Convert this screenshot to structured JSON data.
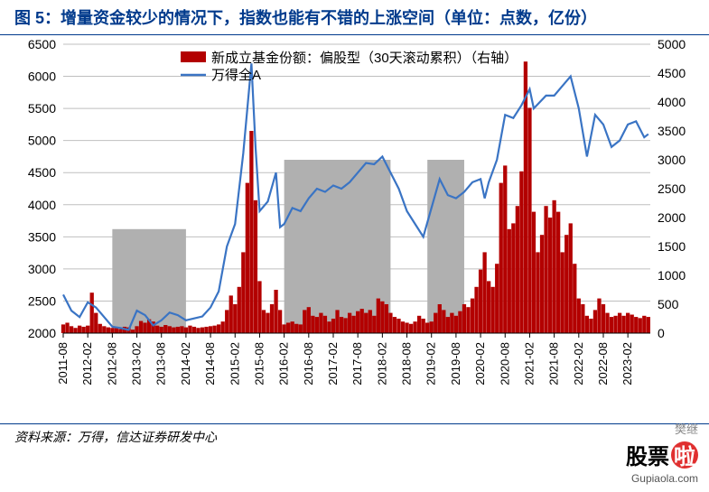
{
  "title": "图 5：增量资金较少的情况下，指数也能有不错的上涨空间（单位：点数，亿份）",
  "source": "资料来源：万得，信达证券研发中心",
  "watermark": {
    "top": "樊继",
    "cn": "股票",
    "la": "啦",
    "url": "Gupiaola.com"
  },
  "chart": {
    "type": "dual-axis bar+line",
    "background_color": "#ffffff",
    "grid_color": "#bfbfbf",
    "left_axis": {
      "min": 2000,
      "max": 6500,
      "step": 500
    },
    "right_axis": {
      "min": 0,
      "max": 5000,
      "step": 500
    },
    "x_labels": [
      "2011-08",
      "2012-02",
      "2012-08",
      "2013-02",
      "2013-08",
      "2014-02",
      "2014-08",
      "2015-02",
      "2015-08",
      "2016-02",
      "2016-08",
      "2017-02",
      "2017-08",
      "2018-02",
      "2018-08",
      "2019-02",
      "2019-08",
      "2020-02",
      "2020-08",
      "2021-02",
      "2021-08",
      "2022-02",
      "2022-08",
      "2023-02"
    ],
    "legend": {
      "bar": {
        "label": "新成立基金份额：偏股型（30天滚动累积）（右轴）",
        "color": "#b30000"
      },
      "line": {
        "label": "万得全A",
        "color": "#3a74c4"
      }
    },
    "shade_color": "#b0b0b0",
    "shade_periods": [
      {
        "start": "2012-08",
        "end": "2014-02",
        "height_right": 1800
      },
      {
        "start": "2016-02",
        "end": "2018-04",
        "height_right": 3000
      },
      {
        "start": "2019-01",
        "end": "2019-10",
        "height_right": 3000
      }
    ],
    "line_series": {
      "color": "#3a74c4",
      "width": 2.2,
      "data": [
        [
          "2011-08",
          2600
        ],
        [
          "2011-10",
          2350
        ],
        [
          "2011-12",
          2250
        ],
        [
          "2012-02",
          2480
        ],
        [
          "2012-04",
          2400
        ],
        [
          "2012-06",
          2250
        ],
        [
          "2012-08",
          2100
        ],
        [
          "2012-10",
          2080
        ],
        [
          "2012-12",
          2050
        ],
        [
          "2013-02",
          2350
        ],
        [
          "2013-04",
          2280
        ],
        [
          "2013-06",
          2120
        ],
        [
          "2013-08",
          2200
        ],
        [
          "2013-10",
          2320
        ],
        [
          "2013-12",
          2280
        ],
        [
          "2014-02",
          2200
        ],
        [
          "2014-04",
          2230
        ],
        [
          "2014-06",
          2260
        ],
        [
          "2014-08",
          2400
        ],
        [
          "2014-10",
          2650
        ],
        [
          "2014-12",
          3350
        ],
        [
          "2015-02",
          3700
        ],
        [
          "2015-04",
          4800
        ],
        [
          "2015-06",
          6200
        ],
        [
          "2015-07",
          4900
        ],
        [
          "2015-08",
          3900
        ],
        [
          "2015-10",
          4050
        ],
        [
          "2015-12",
          4500
        ],
        [
          "2016-01",
          3650
        ],
        [
          "2016-02",
          3700
        ],
        [
          "2016-04",
          3950
        ],
        [
          "2016-06",
          3900
        ],
        [
          "2016-08",
          4100
        ],
        [
          "2016-10",
          4250
        ],
        [
          "2016-12",
          4200
        ],
        [
          "2017-02",
          4300
        ],
        [
          "2017-04",
          4250
        ],
        [
          "2017-06",
          4350
        ],
        [
          "2017-08",
          4500
        ],
        [
          "2017-10",
          4650
        ],
        [
          "2017-12",
          4630
        ],
        [
          "2018-02",
          4750
        ],
        [
          "2018-04",
          4500
        ],
        [
          "2018-06",
          4250
        ],
        [
          "2018-08",
          3900
        ],
        [
          "2018-10",
          3700
        ],
        [
          "2018-12",
          3500
        ],
        [
          "2019-02",
          3950
        ],
        [
          "2019-04",
          4400
        ],
        [
          "2019-06",
          4150
        ],
        [
          "2019-08",
          4100
        ],
        [
          "2019-10",
          4200
        ],
        [
          "2019-12",
          4350
        ],
        [
          "2020-02",
          4400
        ],
        [
          "2020-03",
          4100
        ],
        [
          "2020-04",
          4350
        ],
        [
          "2020-06",
          4700
        ],
        [
          "2020-08",
          5400
        ],
        [
          "2020-10",
          5350
        ],
        [
          "2020-12",
          5550
        ],
        [
          "2021-02",
          5800
        ],
        [
          "2021-03",
          5500
        ],
        [
          "2021-06",
          5700
        ],
        [
          "2021-08",
          5700
        ],
        [
          "2021-10",
          5850
        ],
        [
          "2021-12",
          6000
        ],
        [
          "2022-02",
          5500
        ],
        [
          "2022-04",
          4750
        ],
        [
          "2022-06",
          5400
        ],
        [
          "2022-08",
          5250
        ],
        [
          "2022-10",
          4900
        ],
        [
          "2022-12",
          5000
        ],
        [
          "2023-02",
          5250
        ],
        [
          "2023-04",
          5300
        ],
        [
          "2023-06",
          5050
        ],
        [
          "2023-07",
          5100
        ]
      ]
    },
    "bar_series": {
      "color": "#b30000",
      "data": [
        [
          "2011-08",
          150
        ],
        [
          "2011-09",
          180
        ],
        [
          "2011-10",
          120
        ],
        [
          "2011-11",
          90
        ],
        [
          "2011-12",
          130
        ],
        [
          "2012-01",
          110
        ],
        [
          "2012-02",
          130
        ],
        [
          "2012-03",
          700
        ],
        [
          "2012-04",
          350
        ],
        [
          "2012-05",
          160
        ],
        [
          "2012-06",
          120
        ],
        [
          "2012-07",
          100
        ],
        [
          "2012-08",
          90
        ],
        [
          "2012-09",
          85
        ],
        [
          "2012-10",
          70
        ],
        [
          "2012-11",
          110
        ],
        [
          "2012-12",
          100
        ],
        [
          "2013-01",
          60
        ],
        [
          "2013-02",
          120
        ],
        [
          "2013-03",
          210
        ],
        [
          "2013-04",
          180
        ],
        [
          "2013-05",
          240
        ],
        [
          "2013-06",
          200
        ],
        [
          "2013-07",
          130
        ],
        [
          "2013-08",
          110
        ],
        [
          "2013-09",
          140
        ],
        [
          "2013-10",
          120
        ],
        [
          "2013-11",
          100
        ],
        [
          "2013-12",
          110
        ],
        [
          "2014-01",
          120
        ],
        [
          "2014-02",
          100
        ],
        [
          "2014-03",
          130
        ],
        [
          "2014-04",
          110
        ],
        [
          "2014-05",
          90
        ],
        [
          "2014-06",
          100
        ],
        [
          "2014-07",
          110
        ],
        [
          "2014-08",
          120
        ],
        [
          "2014-09",
          130
        ],
        [
          "2014-10",
          150
        ],
        [
          "2014-11",
          200
        ],
        [
          "2014-12",
          400
        ],
        [
          "2015-01",
          650
        ],
        [
          "2015-02",
          500
        ],
        [
          "2015-03",
          800
        ],
        [
          "2015-04",
          1400
        ],
        [
          "2015-05",
          2600
        ],
        [
          "2015-06",
          3500
        ],
        [
          "2015-07",
          2300
        ],
        [
          "2015-08",
          900
        ],
        [
          "2015-09",
          400
        ],
        [
          "2015-10",
          350
        ],
        [
          "2015-11",
          500
        ],
        [
          "2015-12",
          750
        ],
        [
          "2016-01",
          400
        ],
        [
          "2016-02",
          150
        ],
        [
          "2016-03",
          180
        ],
        [
          "2016-04",
          200
        ],
        [
          "2016-05",
          160
        ],
        [
          "2016-06",
          150
        ],
        [
          "2016-07",
          400
        ],
        [
          "2016-08",
          450
        ],
        [
          "2016-09",
          300
        ],
        [
          "2016-10",
          280
        ],
        [
          "2016-11",
          350
        ],
        [
          "2016-12",
          300
        ],
        [
          "2017-01",
          200
        ],
        [
          "2017-02",
          250
        ],
        [
          "2017-03",
          400
        ],
        [
          "2017-04",
          280
        ],
        [
          "2017-05",
          260
        ],
        [
          "2017-06",
          350
        ],
        [
          "2017-07",
          300
        ],
        [
          "2017-08",
          380
        ],
        [
          "2017-09",
          420
        ],
        [
          "2017-10",
          350
        ],
        [
          "2017-11",
          400
        ],
        [
          "2017-12",
          300
        ],
        [
          "2018-01",
          600
        ],
        [
          "2018-02",
          550
        ],
        [
          "2018-03",
          500
        ],
        [
          "2018-04",
          350
        ],
        [
          "2018-05",
          280
        ],
        [
          "2018-06",
          250
        ],
        [
          "2018-07",
          200
        ],
        [
          "2018-08",
          180
        ],
        [
          "2018-09",
          160
        ],
        [
          "2018-10",
          200
        ],
        [
          "2018-11",
          300
        ],
        [
          "2018-12",
          250
        ],
        [
          "2019-01",
          180
        ],
        [
          "2019-02",
          200
        ],
        [
          "2019-03",
          350
        ],
        [
          "2019-04",
          500
        ],
        [
          "2019-05",
          400
        ],
        [
          "2019-06",
          280
        ],
        [
          "2019-07",
          350
        ],
        [
          "2019-08",
          300
        ],
        [
          "2019-09",
          380
        ],
        [
          "2019-10",
          500
        ],
        [
          "2019-11",
          450
        ],
        [
          "2019-12",
          600
        ],
        [
          "2020-01",
          800
        ],
        [
          "2020-02",
          1100
        ],
        [
          "2020-03",
          1400
        ],
        [
          "2020-04",
          900
        ],
        [
          "2020-05",
          800
        ],
        [
          "2020-06",
          1200
        ],
        [
          "2020-07",
          2600
        ],
        [
          "2020-08",
          2900
        ],
        [
          "2020-09",
          1800
        ],
        [
          "2020-10",
          1900
        ],
        [
          "2020-11",
          2200
        ],
        [
          "2020-12",
          2800
        ],
        [
          "2021-01",
          4700
        ],
        [
          "2021-02",
          3900
        ],
        [
          "2021-03",
          2100
        ],
        [
          "2021-04",
          1400
        ],
        [
          "2021-05",
          1700
        ],
        [
          "2021-06",
          2200
        ],
        [
          "2021-07",
          2000
        ],
        [
          "2021-08",
          2300
        ],
        [
          "2021-09",
          2100
        ],
        [
          "2021-10",
          1400
        ],
        [
          "2021-11",
          1700
        ],
        [
          "2021-12",
          1900
        ],
        [
          "2022-01",
          1200
        ],
        [
          "2022-02",
          600
        ],
        [
          "2022-03",
          500
        ],
        [
          "2022-04",
          300
        ],
        [
          "2022-05",
          250
        ],
        [
          "2022-06",
          400
        ],
        [
          "2022-07",
          600
        ],
        [
          "2022-08",
          500
        ],
        [
          "2022-09",
          350
        ],
        [
          "2022-10",
          280
        ],
        [
          "2022-11",
          300
        ],
        [
          "2022-12",
          350
        ],
        [
          "2023-01",
          300
        ],
        [
          "2023-02",
          350
        ],
        [
          "2023-03",
          320
        ],
        [
          "2023-04",
          280
        ],
        [
          "2023-05",
          260
        ],
        [
          "2023-06",
          300
        ],
        [
          "2023-07",
          280
        ]
      ]
    }
  }
}
